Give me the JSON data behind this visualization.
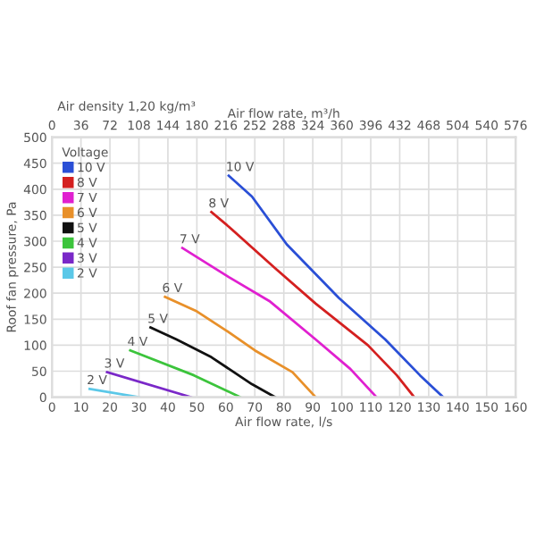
{
  "chart_data": {
    "type": "line",
    "xlabel": "Air flow rate, l/s",
    "ylabel": "Roof fan pressure, Pa",
    "x2label": "Air flow rate, m³/h",
    "legend_title": "Voltage",
    "legend": "top left",
    "grid": true,
    "marker": "none",
    "line_style": "solid",
    "annotations": [
      "Air density 1,20 kg/m³"
    ],
    "xlim": [
      0,
      160
    ],
    "xticks": [
      0,
      10,
      20,
      30,
      40,
      50,
      60,
      70,
      80,
      90,
      100,
      110,
      120,
      130,
      140,
      150,
      160
    ],
    "x2lim": [
      0,
      576
    ],
    "x2ticks": [
      0,
      36,
      72,
      108,
      144,
      180,
      216,
      252,
      288,
      324,
      360,
      396,
      432,
      468,
      504,
      540,
      576
    ],
    "ylim": [
      0,
      500
    ],
    "yticks": [
      0,
      50,
      100,
      150,
      200,
      250,
      300,
      350,
      400,
      450,
      500
    ],
    "series": [
      {
        "name": "10 V",
        "color": "#2a4fd6",
        "x": [
          61,
          69,
          81,
          99,
          115,
          127,
          135
        ],
        "values": [
          426,
          386,
          294,
          191,
          111,
          42,
          0
        ]
      },
      {
        "name": "8 V",
        "color": "#d42020",
        "x": [
          55,
          61,
          77,
          91,
          109,
          119,
          125
        ],
        "values": [
          356,
          328,
          248,
          180,
          100,
          42,
          0
        ]
      },
      {
        "name": "7 V",
        "color": "#e020d0",
        "x": [
          45,
          61,
          75,
          91,
          103,
          112
        ],
        "values": [
          287,
          231,
          185,
          111,
          54,
          0
        ]
      },
      {
        "name": "6 V",
        "color": "#e8902a",
        "x": [
          39,
          50,
          61,
          70,
          83,
          91
        ],
        "values": [
          193,
          165,
          125,
          90,
          48,
          0
        ]
      },
      {
        "name": "5 V",
        "color": "#111111",
        "x": [
          34,
          43,
          55,
          69,
          77
        ],
        "values": [
          134,
          111,
          77,
          25,
          0
        ]
      },
      {
        "name": "4 V",
        "color": "#3cc43c",
        "x": [
          27,
          49,
          65
        ],
        "values": [
          90,
          42,
          0
        ]
      },
      {
        "name": "3 V",
        "color": "#7a28c8",
        "x": [
          19,
          48
        ],
        "values": [
          48,
          0
        ]
      },
      {
        "name": "2 V",
        "color": "#5bc8e8",
        "x": [
          13,
          30
        ],
        "values": [
          16,
          0
        ]
      }
    ]
  }
}
